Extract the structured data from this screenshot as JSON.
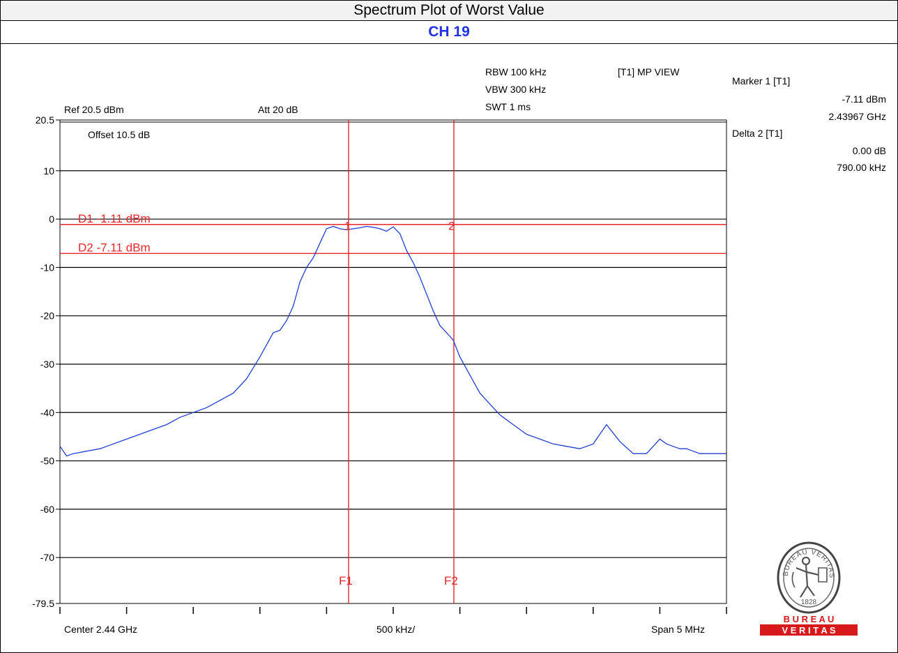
{
  "header": {
    "title": "Spectrum Plot of Worst Value",
    "channel": "CH 19"
  },
  "instrument": {
    "rbw": "RBW 100 kHz",
    "vbw": "VBW 300 kHz",
    "swt": "SWT 1 ms",
    "mode": "[T1] MP VIEW",
    "ref": "Ref 20.5 dBm",
    "att": "Att  20 dB",
    "offset": "Offset 10.5 dB",
    "center": "Center 2.44 GHz",
    "per_div": "500 kHz/",
    "span": "Span 5 MHz"
  },
  "markers": {
    "marker1_label": "Marker 1 [T1]",
    "marker1_level": "-7.11 dBm",
    "marker1_freq": "2.43967 GHz",
    "delta2_label": "Delta 2 [T1]",
    "delta2_level": "0.00 dB",
    "delta2_freq": "790.00 kHz"
  },
  "logo": {
    "arc_text": "BUREAU VERITAS",
    "year": "1828",
    "line1": "B U R E A U",
    "line2": "V E R I T A S"
  },
  "colors": {
    "trace": "#1f3fd1",
    "marker": "#e8262b",
    "grid": "#000000",
    "channel": "#1f33e6",
    "logo_red": "#d7191c"
  },
  "chart_data": {
    "type": "line",
    "xlim": [
      -2.5,
      2.5
    ],
    "ylim": [
      -79.5,
      20.5
    ],
    "x_unit": "MHz offset from center",
    "y_ticks": [
      {
        "value": 20.5,
        "label": "20.5"
      },
      {
        "value": 10,
        "label": "10"
      },
      {
        "value": 0,
        "label": "0"
      },
      {
        "value": -10,
        "label": "-10"
      },
      {
        "value": -20,
        "label": "-20"
      },
      {
        "value": -30,
        "label": "-30"
      },
      {
        "value": -40,
        "label": "-40"
      },
      {
        "value": -50,
        "label": "-50"
      },
      {
        "value": -60,
        "label": "-60"
      },
      {
        "value": -70,
        "label": "-70"
      },
      {
        "value": -79.5,
        "label": "-79.5"
      }
    ],
    "x_ticks": [
      -2.5,
      -2.0,
      -1.5,
      -1.0,
      -0.5,
      0.0,
      0.5,
      1.0,
      1.5,
      2.0,
      2.5
    ],
    "display_lines": [
      {
        "label": "D1 -1.11 dBm",
        "value": -1.11
      },
      {
        "label": "D2 -7.11 dBm",
        "value": -7.11
      }
    ],
    "frequency_lines": [
      {
        "label": "F1",
        "x": -0.335
      },
      {
        "label": "F2",
        "x": 0.455
      }
    ],
    "markers": [
      {
        "label": "1",
        "x": -0.335,
        "y": -7.11
      },
      {
        "label": "2",
        "x": 0.455,
        "y": -7.11
      }
    ],
    "series": [
      {
        "x": [
          -2.5,
          -2.45,
          -2.4,
          -2.3,
          -2.2,
          -2.1,
          -2.0,
          -1.9,
          -1.8,
          -1.7,
          -1.6,
          -1.5,
          -1.4,
          -1.3,
          -1.2,
          -1.1,
          -1.0,
          -0.95,
          -0.9,
          -0.85,
          -0.8,
          -0.75,
          -0.7,
          -0.65,
          -0.6,
          -0.55,
          -0.5,
          -0.45,
          -0.4,
          -0.35,
          -0.3,
          -0.25,
          -0.2,
          -0.15,
          -0.1,
          -0.05,
          0.0,
          0.05,
          0.1,
          0.15,
          0.2,
          0.25,
          0.3,
          0.35,
          0.4,
          0.45,
          0.5,
          0.55,
          0.6,
          0.65,
          0.7,
          0.75,
          0.8,
          0.85,
          0.9,
          0.95,
          1.0,
          1.1,
          1.2,
          1.3,
          1.4,
          1.5,
          1.6,
          1.7,
          1.8,
          1.9,
          2.0,
          2.05,
          2.1,
          2.15,
          2.2,
          2.25,
          2.3,
          2.33,
          2.37,
          2.4,
          2.45,
          2.5
        ],
        "y": [
          -47,
          -49,
          -48.5,
          -48,
          -47.5,
          -46.5,
          -45.5,
          -44.5,
          -43.5,
          -42.5,
          -41,
          -40,
          -39,
          -37.5,
          -36,
          -33,
          -28.5,
          -26,
          -23.5,
          -23,
          -21,
          -18,
          -13,
          -10,
          -8,
          -5,
          -2,
          -1.5,
          -2,
          -2.2,
          -2,
          -1.8,
          -1.5,
          -1.7,
          -2,
          -2.5,
          -1.6,
          -3,
          -6.5,
          -9,
          -12,
          -15.5,
          -19,
          -22,
          -23.5,
          -25,
          -28.5,
          -31,
          -33.5,
          -36,
          -37.5,
          -39,
          -40.5,
          -41.5,
          -42.5,
          -43.5,
          -44.5,
          -45.5,
          -46.5,
          -47,
          -47.5,
          -46.5,
          -42.5,
          -46,
          -48.5,
          -48.5,
          -45.5,
          -46.5,
          -47,
          -47.5,
          -47.5,
          -48,
          -48.5,
          -48.5,
          -48.5,
          -48.5,
          -48.5,
          -48.5
        ]
      }
    ]
  }
}
